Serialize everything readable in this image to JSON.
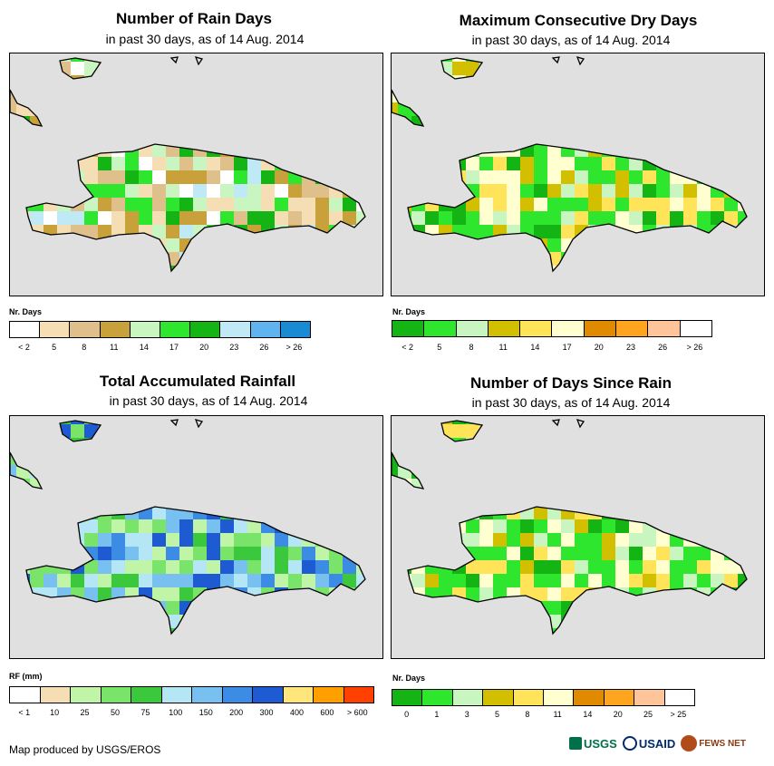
{
  "panels": [
    {
      "id": "rain_days",
      "title": "Number of Rain Days",
      "subtitle": "in past 30 days, as of 14 Aug. 2014",
      "legend": {
        "title": "Nr. Days",
        "colors": [
          "#ffffff",
          "#f5deb3",
          "#dfc08a",
          "#c9a13b",
          "#c8f5c0",
          "#2ee62e",
          "#14b414",
          "#bfeaf5",
          "#5fb4f0",
          "#1a8ad2"
        ],
        "labels": [
          "< 2",
          "5",
          "8",
          "11",
          "14",
          "17",
          "20",
          "23",
          "26",
          "> 26"
        ]
      },
      "grid_palette": [
        "#f5deb3",
        "#dfc08a",
        "#c9a13b",
        "#c8f5c0",
        "#2ee62e",
        "#14b414",
        "#bfeaf5",
        "#ffffff"
      ],
      "grid_seed": 7
    },
    {
      "id": "max_dry",
      "title": "Maximum Consecutive Dry Days",
      "subtitle": "in past 30 days, as of 14 Aug. 2014",
      "legend": {
        "title": "Nr. Days",
        "colors": [
          "#14b414",
          "#2ee62e",
          "#c8f5c0",
          "#d2c000",
          "#ffe45a",
          "#ffffd0",
          "#e08a00",
          "#ffa41e",
          "#ffc49a",
          "#ffffff"
        ],
        "labels": [
          "< 2",
          "5",
          "8",
          "11",
          "14",
          "17",
          "20",
          "23",
          "26",
          "> 26"
        ]
      },
      "grid_palette": [
        "#2ee62e",
        "#2ee62e",
        "#14b414",
        "#c8f5c0",
        "#d2c000",
        "#ffe45a",
        "#ffffd0"
      ],
      "grid_seed": 13
    },
    {
      "id": "total_rain",
      "title": "Total Accumulated Rainfall",
      "subtitle": "in past 30 days, as of 14 Aug. 2014",
      "legend": {
        "title": "RF (mm)",
        "colors": [
          "#ffffff",
          "#f5deb3",
          "#c0f5a8",
          "#7ae46a",
          "#3cc83c",
          "#b4e6f5",
          "#78c0f0",
          "#3c8ce6",
          "#1e5ad2",
          "#ffe67a",
          "#ffa000",
          "#ff4000"
        ],
        "labels": [
          "< 1",
          "10",
          "25",
          "50",
          "75",
          "100",
          "150",
          "200",
          "300",
          "400",
          "600",
          "> 600"
        ]
      },
      "grid_palette": [
        "#78c0f0",
        "#3c8ce6",
        "#1e5ad2",
        "#7ae46a",
        "#3cc83c",
        "#b4e6f5",
        "#c0f5a8"
      ],
      "grid_seed": 21
    },
    {
      "id": "days_since",
      "title": "Number of Days Since Rain",
      "subtitle": "in past 30 days, as of 14 Aug. 2014",
      "legend": {
        "title": "Nr. Days",
        "colors": [
          "#14b414",
          "#2ee62e",
          "#c8f5c0",
          "#d2c000",
          "#ffe45a",
          "#ffffd0",
          "#e08a00",
          "#ffa41e",
          "#ffc49a",
          "#ffffff"
        ],
        "labels": [
          "0",
          "1",
          "3",
          "5",
          "8",
          "11",
          "14",
          "20",
          "25",
          "> 25"
        ]
      },
      "grid_palette": [
        "#2ee62e",
        "#2ee62e",
        "#14b414",
        "#d2c000",
        "#c8f5c0",
        "#ffe45a",
        "#ffffd0"
      ],
      "grid_seed": 5
    }
  ],
  "credit": "Map produced by USGS/EROS",
  "logos": {
    "usgs": "USGS",
    "usaid": "USAID",
    "fews": "FEWS NET"
  }
}
